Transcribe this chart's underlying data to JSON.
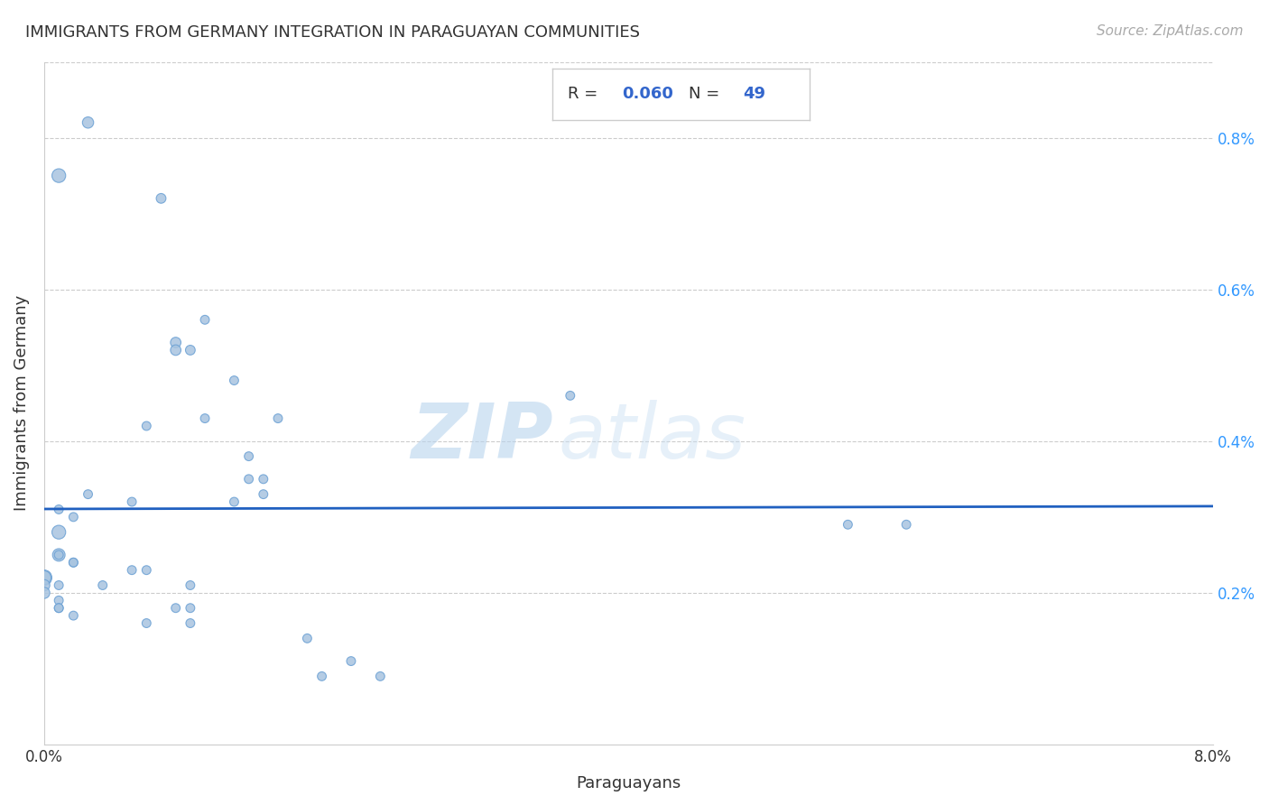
{
  "title": "IMMIGRANTS FROM GERMANY INTEGRATION IN PARAGUAYAN COMMUNITIES",
  "source": "Source: ZipAtlas.com",
  "xlabel": "Paraguayans",
  "ylabel": "Immigrants from Germany",
  "R": 0.06,
  "N": 49,
  "scatter_color": "#a8c4e0",
  "scatter_edge_color": "#6aa0d4",
  "line_color": "#2060c0",
  "background_color": "#ffffff",
  "xlim": [
    0,
    0.08
  ],
  "ylim": [
    0,
    0.009
  ],
  "ytick_positions": [
    0.002,
    0.004,
    0.006,
    0.008
  ],
  "ytick_labels": [
    "0.2%",
    "0.4%",
    "0.6%",
    "0.8%"
  ],
  "watermark_zip": "ZIP",
  "watermark_atlas": "atlas",
  "points": [
    [
      0.001,
      0.0075
    ],
    [
      0.003,
      0.0082
    ],
    [
      0.008,
      0.0072
    ],
    [
      0.011,
      0.0056
    ],
    [
      0.009,
      0.0053
    ],
    [
      0.009,
      0.0052
    ],
    [
      0.01,
      0.0052
    ],
    [
      0.014,
      0.0038
    ],
    [
      0.007,
      0.0042
    ],
    [
      0.011,
      0.0043
    ],
    [
      0.013,
      0.0048
    ],
    [
      0.016,
      0.0043
    ],
    [
      0.015,
      0.0035
    ],
    [
      0.015,
      0.0033
    ],
    [
      0.003,
      0.0033
    ],
    [
      0.036,
      0.0046
    ],
    [
      0.006,
      0.0032
    ],
    [
      0.014,
      0.0035
    ],
    [
      0.013,
      0.0032
    ],
    [
      0.001,
      0.0031
    ],
    [
      0.002,
      0.003
    ],
    [
      0.001,
      0.0028
    ],
    [
      0.001,
      0.0025
    ],
    [
      0.001,
      0.0025
    ],
    [
      0.002,
      0.0024
    ],
    [
      0.002,
      0.0024
    ],
    [
      0.006,
      0.0023
    ],
    [
      0.007,
      0.0023
    ],
    [
      0.0,
      0.0022
    ],
    [
      0.0,
      0.0022
    ],
    [
      0.0,
      0.0021
    ],
    [
      0.001,
      0.0021
    ],
    [
      0.004,
      0.0021
    ],
    [
      0.01,
      0.0021
    ],
    [
      0.0,
      0.002
    ],
    [
      0.001,
      0.0019
    ],
    [
      0.001,
      0.0018
    ],
    [
      0.001,
      0.0018
    ],
    [
      0.009,
      0.0018
    ],
    [
      0.01,
      0.0018
    ],
    [
      0.002,
      0.0017
    ],
    [
      0.007,
      0.0016
    ],
    [
      0.01,
      0.0016
    ],
    [
      0.018,
      0.0014
    ],
    [
      0.021,
      0.0011
    ],
    [
      0.019,
      0.0009
    ],
    [
      0.023,
      0.0009
    ],
    [
      0.055,
      0.0029
    ],
    [
      0.059,
      0.0029
    ]
  ],
  "point_sizes": [
    120,
    80,
    60,
    50,
    70,
    70,
    60,
    50,
    50,
    50,
    50,
    50,
    50,
    50,
    50,
    50,
    50,
    50,
    50,
    50,
    50,
    120,
    100,
    50,
    50,
    50,
    50,
    50,
    150,
    120,
    80,
    50,
    50,
    50,
    80,
    50,
    50,
    50,
    50,
    50,
    50,
    50,
    50,
    50,
    50,
    50,
    50,
    50,
    50
  ]
}
